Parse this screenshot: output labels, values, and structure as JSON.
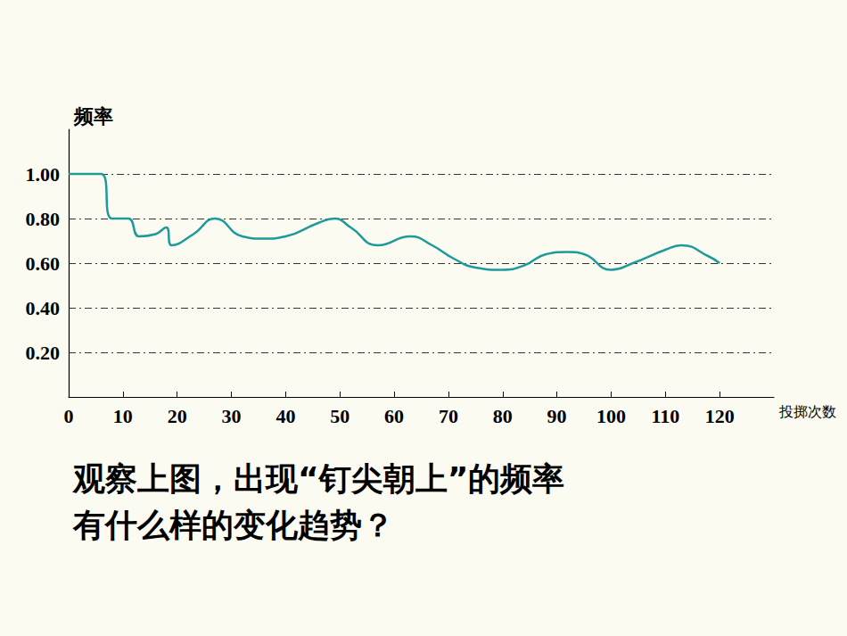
{
  "chart_data": {
    "type": "line",
    "y_label": "频率",
    "x_label": "投掷次数",
    "annotation": [
      "观察上图，出现“钉尖朝上”的频率",
      "有什么样的变化趋势？"
    ],
    "x": [
      0,
      3,
      6,
      8,
      11,
      13,
      16,
      18,
      19,
      23,
      27,
      32,
      36,
      40,
      46,
      49,
      52,
      57,
      63,
      67,
      71,
      75,
      80,
      84,
      88,
      92,
      95,
      100,
      104,
      110,
      113,
      118,
      120
    ],
    "values": [
      1.0,
      1.0,
      1.0,
      0.8,
      0.8,
      0.72,
      0.73,
      0.76,
      0.68,
      0.73,
      0.8,
      0.72,
      0.71,
      0.72,
      0.78,
      0.8,
      0.76,
      0.68,
      0.72,
      0.68,
      0.62,
      0.58,
      0.57,
      0.59,
      0.64,
      0.65,
      0.64,
      0.57,
      0.6,
      0.66,
      0.68,
      0.63,
      0.6
    ],
    "color": "#1e9a9a",
    "xlim": [
      0,
      130
    ],
    "xticks": [
      0,
      10,
      20,
      30,
      40,
      50,
      60,
      70,
      80,
      90,
      100,
      110,
      120
    ],
    "ylim": [
      0,
      1.2
    ],
    "yticks": [
      {
        "value": 0.2,
        "label": "0.20"
      },
      {
        "value": 0.4,
        "label": "0.40"
      },
      {
        "value": 0.6,
        "label": "0.60"
      },
      {
        "value": 0.8,
        "label": "0.80"
      },
      {
        "value": 1.0,
        "label": "1.00"
      }
    ],
    "grid": true,
    "line_style": "solid"
  }
}
